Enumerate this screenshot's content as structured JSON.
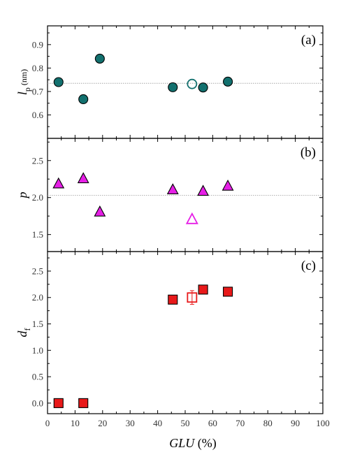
{
  "colors": {
    "teal": "#12706e",
    "magenta": "#e61fe6",
    "red": "#e8191a",
    "axis": "#000000"
  },
  "chart_data": [
    {
      "type": "scatter",
      "panel_label": "(a)",
      "ylabel_main": "l",
      "ylabel_sub": "p",
      "ylabel_unit": " (nm)",
      "xlim": [
        0,
        100
      ],
      "ylim": [
        0.5,
        0.98
      ],
      "yticks": [
        0.6,
        0.7,
        0.8,
        0.9
      ],
      "ytick_labels": [
        "0.6",
        "0.7",
        "0.8",
        "0.9"
      ],
      "reference_line": 0.735,
      "marker": "circle",
      "color": "#12706e",
      "series": [
        {
          "filled": true,
          "points": [
            [
              4,
              0.74
            ],
            [
              13,
              0.667
            ],
            [
              19,
              0.84
            ],
            [
              45.5,
              0.718
            ],
            [
              56.5,
              0.717
            ],
            [
              65.5,
              0.742
            ]
          ]
        },
        {
          "filled": false,
          "points": [
            [
              52.5,
              0.732
            ]
          ]
        }
      ]
    },
    {
      "type": "scatter",
      "panel_label": "(b)",
      "ylabel_main": "p",
      "xlim": [
        0,
        100
      ],
      "ylim": [
        1.27,
        2.8
      ],
      "yticks": [
        1.5,
        2.0,
        2.5
      ],
      "ytick_labels": [
        "1.5",
        "2.0",
        "2.5"
      ],
      "reference_line": 2.03,
      "marker": "triangle",
      "color": "#e61fe6",
      "series": [
        {
          "filled": true,
          "points": [
            [
              4,
              2.18
            ],
            [
              13,
              2.25
            ],
            [
              19,
              1.8
            ],
            [
              45.5,
              2.1
            ],
            [
              56.5,
              2.08
            ],
            [
              65.5,
              2.15
            ]
          ]
        },
        {
          "filled": false,
          "points": [
            [
              52.5,
              1.7
            ]
          ]
        }
      ]
    },
    {
      "type": "scatter",
      "panel_label": "(c)",
      "ylabel_main": "d",
      "ylabel_sub": "f",
      "xlim": [
        0,
        100
      ],
      "ylim": [
        -0.2,
        2.87
      ],
      "yticks": [
        0.0,
        0.5,
        1.0,
        1.5,
        2.0,
        2.5
      ],
      "ytick_labels": [
        "0.0",
        "0.5",
        "1.0",
        "1.5",
        "2.0",
        "2.5"
      ],
      "marker": "square",
      "color": "#e8191a",
      "series": [
        {
          "filled": true,
          "points": [
            [
              4,
              0.0
            ],
            [
              13,
              0.0
            ],
            [
              45.5,
              1.96
            ],
            [
              56.5,
              2.15
            ],
            [
              65.5,
              2.11
            ]
          ]
        },
        {
          "filled": false,
          "points": [
            [
              52.5,
              2.0
            ]
          ],
          "error": [
            0.13
          ]
        }
      ]
    }
  ],
  "x_axis": {
    "label_main": "GLU",
    "label_unit": " (%)",
    "ticks": [
      0,
      10,
      20,
      30,
      40,
      50,
      60,
      70,
      80,
      90,
      100
    ],
    "tick_labels": [
      "0",
      "10",
      "20",
      "30",
      "40",
      "50",
      "60",
      "70",
      "80",
      "90",
      "100"
    ]
  }
}
